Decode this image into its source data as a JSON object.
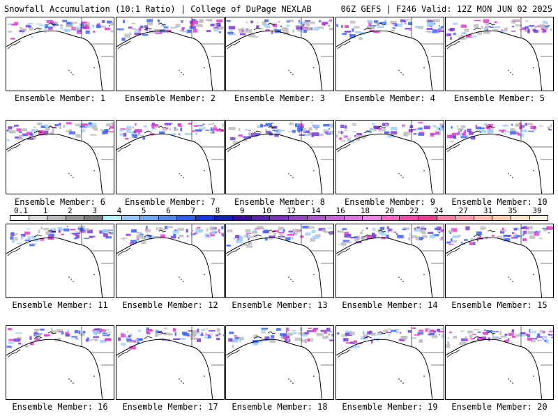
{
  "header": {
    "title_left": "Snowfall Accumulation (10:1 Ratio) | College of DuPage NEXLAB",
    "title_right": "06Z GEFS | F246 Valid: 12Z MON JUN 02 2025"
  },
  "label_prefix": "Ensemble Member: ",
  "members": [
    1,
    2,
    3,
    4,
    5,
    6,
    7,
    8,
    9,
    10,
    11,
    12,
    13,
    14,
    15,
    16,
    17,
    18,
    19,
    20
  ],
  "colorbar": {
    "ticks": [
      "0.1",
      "1",
      "2",
      "3",
      "4",
      "5",
      "6",
      "7",
      "8",
      "9",
      "10",
      "12",
      "14",
      "16",
      "18",
      "20",
      "22",
      "24",
      "27",
      "31",
      "35",
      "39"
    ],
    "colors": [
      "#ffffff",
      "#d9d9d9",
      "#b8b8b8",
      "#969696",
      "#7a7a7a",
      "#b3f0f5",
      "#8cc8ff",
      "#6aa8f5",
      "#4a88ee",
      "#2a60ee",
      "#1838d8",
      "#1020b0",
      "#3a0aa0",
      "#5a20b0",
      "#7a30c0",
      "#9a40c8",
      "#b050d0",
      "#c860d8",
      "#e070e0",
      "#f080e8",
      "#ff60c8",
      "#f048a8",
      "#e83c90",
      "#ff7aa0",
      "#ff9ab0",
      "#ffb8a8",
      "#ffccb0",
      "#ffe0c0",
      "#fff0e0"
    ],
    "colors_note_count": 29
  },
  "colors": {
    "outline": "#000000",
    "snow_gray": "#bdbdbd",
    "snow_blue": "#3c64ff",
    "snow_magenta": "#e23cc8",
    "snow_purple": "#7a3cd8"
  }
}
